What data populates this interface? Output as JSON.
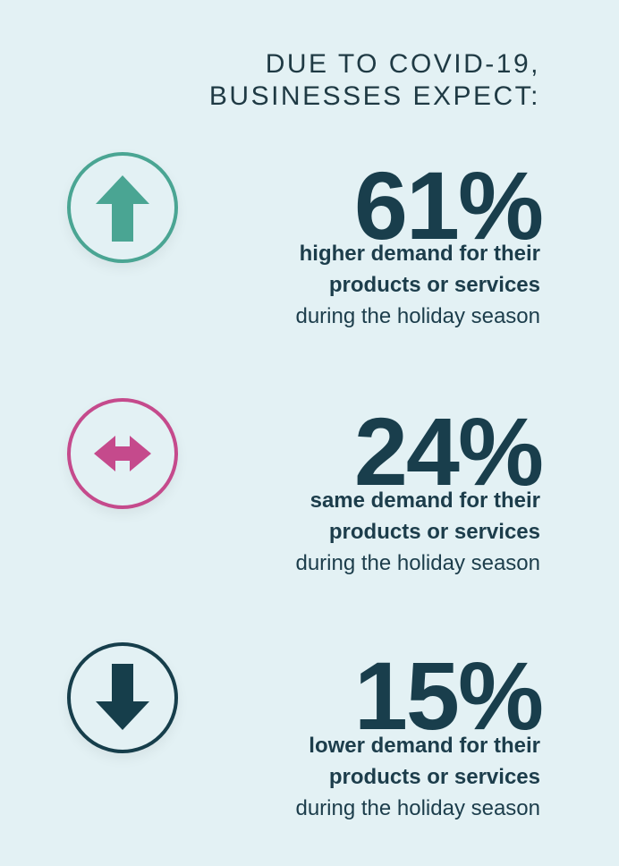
{
  "heading": {
    "line1": "DUE TO COVID-19,",
    "line2": "BUSINESSES EXPECT:"
  },
  "stats": [
    {
      "icon": "arrow-up-icon",
      "color": "#4aa593",
      "percent": "61%",
      "line1": "higher demand for their",
      "line2": "products or services",
      "line3": "during the holiday season"
    },
    {
      "icon": "arrow-left-right-icon",
      "color": "#c54a8c",
      "percent": "24%",
      "line1": "same demand for their",
      "line2": "products or services",
      "line3": "during the holiday season"
    },
    {
      "icon": "arrow-down-icon",
      "color": "#163e4b",
      "percent": "15%",
      "line1": "lower demand for their",
      "line2": "products or services",
      "line3": "during the holiday season"
    }
  ]
}
